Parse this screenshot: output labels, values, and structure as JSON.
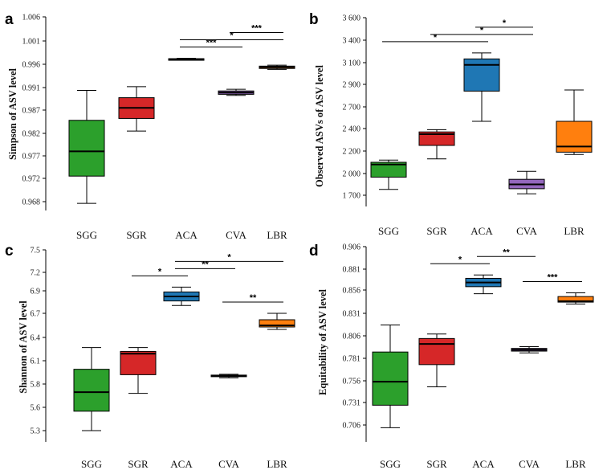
{
  "chart_data": [
    {
      "panel": "a",
      "type": "box",
      "ylabel": "Simpson of ASV level",
      "yticks": [
        "0.968",
        "0.972",
        "0.977",
        "0.982",
        "0.987",
        "0.991",
        "0.996",
        "1.001",
        "1.006"
      ],
      "categories": [
        "SGG",
        "SGR",
        "ACA",
        "CVA",
        "LBR"
      ],
      "boxes": [
        {
          "min": 0.9677,
          "q1": 0.9725,
          "median": 0.978,
          "q3": 0.9848,
          "max": 0.9905
        },
        {
          "min": 0.9825,
          "q1": 0.9852,
          "median": 0.9874,
          "q3": 0.9892,
          "max": 0.9912
        },
        {
          "min": 0.9969,
          "q1": 0.997,
          "median": 0.9971,
          "q3": 0.9972,
          "max": 0.9973
        },
        {
          "min": 0.9896,
          "q1": 0.9898,
          "median": 0.9901,
          "q3": 0.9904,
          "max": 0.9907
        },
        {
          "min": 0.9949,
          "q1": 0.9951,
          "median": 0.9954,
          "q3": 0.9956,
          "max": 0.9958
        }
      ],
      "comparisons": [
        {
          "from": "ACA",
          "to": "CVA",
          "label": "***"
        },
        {
          "from": "ACA",
          "to": "LBR",
          "label": "*"
        },
        {
          "from": "CVA",
          "to": "LBR",
          "label": "***"
        }
      ],
      "colors": [
        "#2ca02c",
        "#d62728",
        "#1f77b4",
        "#9467bd",
        "#ff7f0e"
      ]
    },
    {
      "panel": "b",
      "type": "box",
      "ylabel": "Observed ASVs of ASV level",
      "yticks": [
        "1 700",
        "2 000",
        "2 200",
        "2 400",
        "2 700",
        "2 900",
        "3 100",
        "3 400",
        "3 600"
      ],
      "categories": [
        "SGG",
        "SGR",
        "ACA",
        "CVA",
        "LBR"
      ],
      "boxes": [
        {
          "min": 1780,
          "q1": 1950,
          "median": 2080,
          "q3": 2100,
          "max": 2120
        },
        {
          "min": 2130,
          "q1": 2250,
          "median": 2350,
          "q3": 2370,
          "max": 2390
        },
        {
          "min": 2500,
          "q1": 2840,
          "median": 3080,
          "q3": 3150,
          "max": 3230
        },
        {
          "min": 1720,
          "q1": 1790,
          "median": 1850,
          "q3": 1920,
          "max": 2020
        },
        {
          "min": 2170,
          "q1": 2190,
          "median": 2240,
          "q3": 2500,
          "max": 2850
        }
      ],
      "comparisons": [
        {
          "from": "SGG",
          "to": "ACA",
          "label": "*"
        },
        {
          "from": "SGR",
          "to": "CVA",
          "label": "*"
        },
        {
          "from": "ACA",
          "to": "CVA",
          "label": "*"
        }
      ],
      "colors": [
        "#2ca02c",
        "#d62728",
        "#1f77b4",
        "#9467bd",
        "#ff7f0e"
      ]
    },
    {
      "panel": "c",
      "type": "box",
      "ylabel": "Shannon of ASV level",
      "yticks": [
        "5.3",
        "5.6",
        "5.8",
        "6.1",
        "6.4",
        "6.7",
        "6.9",
        "7.2",
        "7.5"
      ],
      "categories": [
        "SGG",
        "SGR",
        "ACA",
        "CVA",
        "LBR"
      ],
      "boxes": [
        {
          "min": 5.3,
          "q1": 5.55,
          "median": 5.73,
          "q3": 5.99,
          "max": 6.27
        },
        {
          "min": 5.72,
          "q1": 5.92,
          "median": 6.19,
          "q3": 6.22,
          "max": 6.27
        },
        {
          "min": 6.77,
          "q1": 6.81,
          "median": 6.85,
          "q3": 6.89,
          "max": 6.96
        },
        {
          "min": 5.88,
          "q1": 5.895,
          "median": 5.905,
          "q3": 5.915,
          "max": 5.925
        },
        {
          "min": 6.5,
          "q1": 6.53,
          "median": 6.55,
          "q3": 6.62,
          "max": 6.7
        }
      ],
      "comparisons": [
        {
          "from": "SGR",
          "to": "ACA",
          "label": "*"
        },
        {
          "from": "ACA",
          "to": "CVA",
          "label": "**"
        },
        {
          "from": "ACA",
          "to": "LBR",
          "label": "*"
        },
        {
          "from": "CVA",
          "to": "LBR",
          "label": "**"
        }
      ],
      "colors": [
        "#2ca02c",
        "#d62728",
        "#1f77b4",
        "#9467bd",
        "#ff7f0e"
      ]
    },
    {
      "panel": "d",
      "type": "box",
      "ylabel": "Equitability of ASV level",
      "yticks": [
        "0.706",
        "0.731",
        "0.756",
        "0.781",
        "0.806",
        "0.831",
        "0.856",
        "0.881",
        "0.906"
      ],
      "categories": [
        "SGG",
        "SGR",
        "ACA",
        "CVA",
        "LBR"
      ],
      "boxes": [
        {
          "min": 0.703,
          "q1": 0.728,
          "median": 0.755,
          "q3": 0.788,
          "max": 0.818
        },
        {
          "min": 0.749,
          "q1": 0.774,
          "median": 0.797,
          "q3": 0.803,
          "max": 0.808
        },
        {
          "min": 0.852,
          "q1": 0.86,
          "median": 0.865,
          "q3": 0.87,
          "max": 0.874
        },
        {
          "min": 0.787,
          "q1": 0.789,
          "median": 0.7905,
          "q3": 0.792,
          "max": 0.794
        },
        {
          "min": 0.841,
          "q1": 0.843,
          "median": 0.844,
          "q3": 0.849,
          "max": 0.853
        }
      ],
      "comparisons": [
        {
          "from": "SGR",
          "to": "ACA",
          "label": "*"
        },
        {
          "from": "ACA",
          "to": "CVA",
          "label": "**"
        },
        {
          "from": "CVA",
          "to": "LBR",
          "label": "***"
        }
      ],
      "colors": [
        "#2ca02c",
        "#d62728",
        "#1f77b4",
        "#9467bd",
        "#ff7f0e"
      ]
    }
  ]
}
